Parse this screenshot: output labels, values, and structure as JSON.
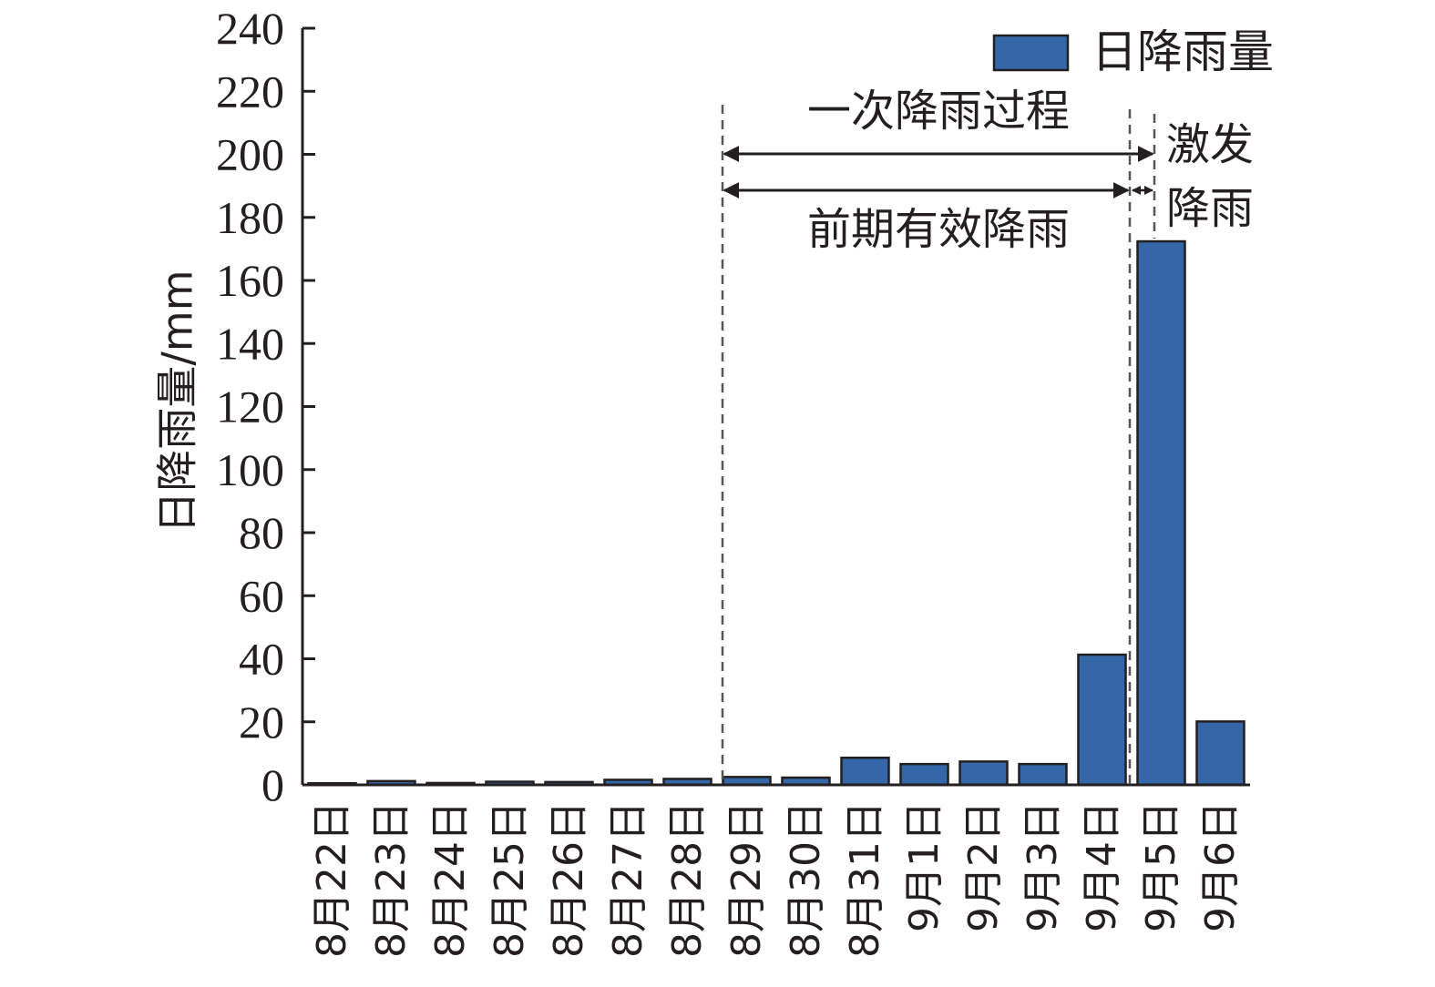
{
  "chart_data": {
    "type": "bar",
    "categories": [
      "8月22日",
      "8月23日",
      "8月24日",
      "8月25日",
      "8月26日",
      "8月27日",
      "8月28日",
      "8月29日",
      "8月30日",
      "8月31日",
      "9月1日",
      "9月2日",
      "9月3日",
      "9月4日",
      "9月5日",
      "9月6日"
    ],
    "series": [
      {
        "name": "日降雨量",
        "color": "#3567a8",
        "values": [
          0.5,
          1.2,
          0.6,
          1.0,
          0.9,
          1.6,
          1.9,
          2.5,
          2.3,
          8.6,
          6.6,
          7.4,
          6.6,
          41.3,
          172.4,
          20.1
        ]
      }
    ],
    "title": "",
    "xlabel": "",
    "ylabel": "日降雨量/mm",
    "ylim": [
      0,
      240
    ],
    "yticks": [
      0,
      20,
      40,
      60,
      80,
      100,
      120,
      140,
      160,
      180,
      200,
      220,
      240
    ],
    "grid": false,
    "legend": "top-right",
    "annotations": {
      "event_label": "一次降雨过程",
      "antecedent_label": "前期有效降雨",
      "trigger_label_line1": "激发",
      "trigger_label_line2": "降雨"
    },
    "markers": {
      "event_start": "8月29日",
      "antecedent_end": "9月4日",
      "trigger_day": "9月5日"
    }
  }
}
